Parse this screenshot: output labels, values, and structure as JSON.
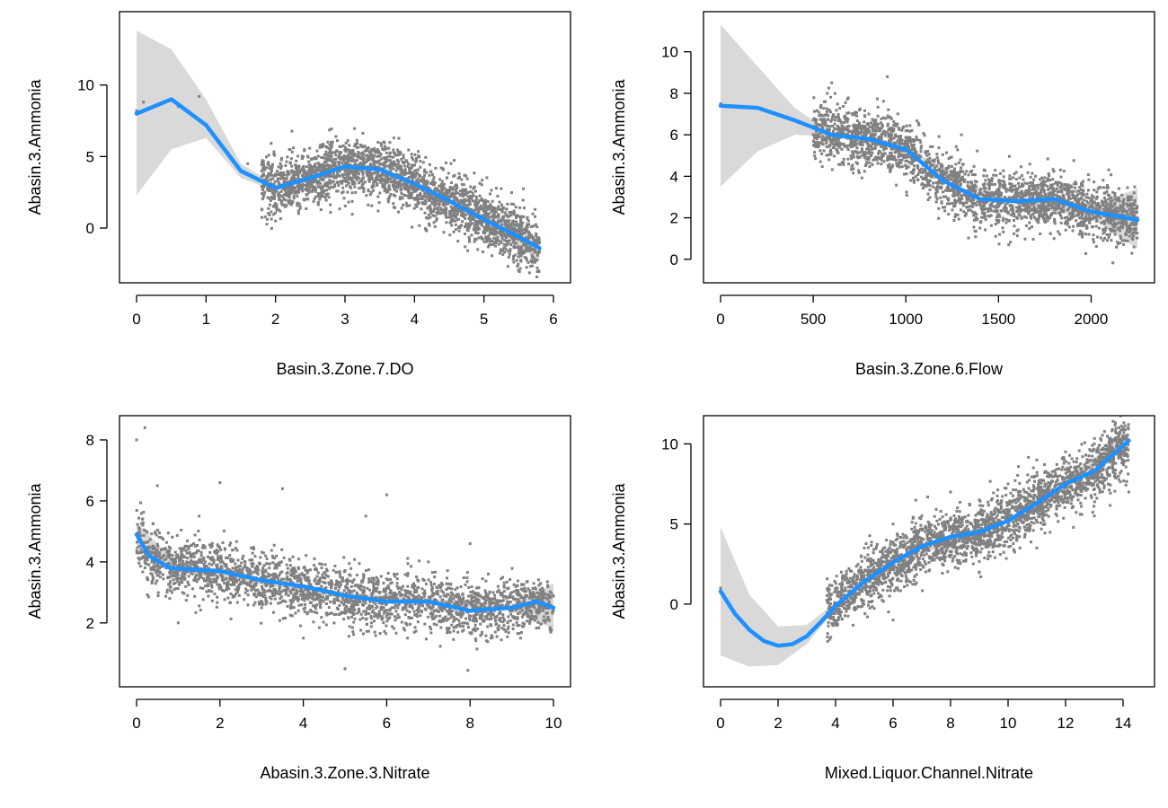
{
  "colors": {
    "points": "#808080",
    "smooth": "#1e90ff",
    "ribbon": "#d9d9d9",
    "axis": "#000000"
  },
  "chart_data": [
    {
      "type": "scatter",
      "xlabel": "Basin.3.Zone.7.DO",
      "ylabel": "Abasin.3.Ammonia",
      "xlim": [
        0,
        6
      ],
      "ylim": [
        -3.2,
        14.5
      ],
      "x_ticks": [
        "0",
        "1",
        "2",
        "3",
        "4",
        "5",
        "6"
      ],
      "y_ticks": [
        "0",
        "5",
        "10"
      ],
      "grid": false,
      "legend": "none",
      "points": {
        "summary": [
          {
            "x": 0.0,
            "y": 8.2
          },
          {
            "x": 0.1,
            "y": 8.8
          },
          {
            "x": 0.6,
            "y": 8.5
          },
          {
            "x": 0.9,
            "y": 9.2
          },
          {
            "x": 1.6,
            "y": 4.5
          },
          {
            "x": 1.9,
            "y": 2.8
          },
          {
            "x": 2.0,
            "y": 0.5
          },
          {
            "x": 2.2,
            "y": 5.5
          },
          {
            "x": 2.5,
            "y": 4.0
          },
          {
            "x": 2.8,
            "y": 6.0
          },
          {
            "x": 3.2,
            "y": 4.2
          },
          {
            "x": 3.6,
            "y": 3.5
          },
          {
            "x": 4.0,
            "y": 3.0
          },
          {
            "x": 4.4,
            "y": 2.0
          },
          {
            "x": 4.8,
            "y": 0.8
          },
          {
            "x": 5.2,
            "y": 0.0
          },
          {
            "x": 5.6,
            "y": -1.0
          },
          {
            "x": 5.8,
            "y": -1.4
          }
        ],
        "band_note_x": [
          1.8,
          5.8
        ]
      },
      "smooth": [
        {
          "x": 0.0,
          "y": 8.0
        },
        {
          "x": 0.5,
          "y": 9.0
        },
        {
          "x": 1.0,
          "y": 7.2
        },
        {
          "x": 1.5,
          "y": 4.0
        },
        {
          "x": 2.0,
          "y": 2.8
        },
        {
          "x": 2.5,
          "y": 3.5
        },
        {
          "x": 3.0,
          "y": 4.3
        },
        {
          "x": 3.5,
          "y": 4.1
        },
        {
          "x": 4.0,
          "y": 3.1
        },
        {
          "x": 4.5,
          "y": 1.9
        },
        {
          "x": 5.0,
          "y": 0.6
        },
        {
          "x": 5.5,
          "y": -0.6
        },
        {
          "x": 5.8,
          "y": -1.4
        }
      ],
      "ribbon": [
        {
          "x": 0.0,
          "lo": 2.3,
          "hi": 13.8
        },
        {
          "x": 0.5,
          "lo": 5.5,
          "hi": 12.5
        },
        {
          "x": 1.0,
          "lo": 6.3,
          "hi": 9.0
        },
        {
          "x": 1.5,
          "lo": 3.5,
          "hi": 4.5
        },
        {
          "x": 2.0,
          "lo": 2.6,
          "hi": 3.0
        },
        {
          "x": 3.0,
          "lo": 4.2,
          "hi": 4.4
        },
        {
          "x": 4.0,
          "lo": 3.0,
          "hi": 3.2
        },
        {
          "x": 5.0,
          "lo": 0.4,
          "hi": 0.8
        },
        {
          "x": 5.8,
          "lo": -2.3,
          "hi": -0.6
        }
      ]
    },
    {
      "type": "scatter",
      "xlabel": "Basin.3.Zone.6.Flow",
      "ylabel": "Abasin.3.Ammonia",
      "xlim": [
        0,
        2250
      ],
      "ylim": [
        -0.7,
        11.5
      ],
      "x_ticks": [
        "0",
        "500",
        "1000",
        "1500",
        "2000"
      ],
      "y_ticks": [
        "0",
        "2",
        "4",
        "6",
        "8",
        "10"
      ],
      "grid": false,
      "legend": "none",
      "points": {
        "summary": [
          {
            "x": 0,
            "y": 7.5
          },
          {
            "x": 500,
            "y": 6.0
          },
          {
            "x": 600,
            "y": 8.5
          },
          {
            "x": 700,
            "y": 5.5
          },
          {
            "x": 800,
            "y": 7.0
          },
          {
            "x": 900,
            "y": 8.8
          },
          {
            "x": 1000,
            "y": 4.5
          },
          {
            "x": 1100,
            "y": 3.5
          },
          {
            "x": 1200,
            "y": 2.5
          },
          {
            "x": 1300,
            "y": 6.0
          },
          {
            "x": 1400,
            "y": 1.5
          },
          {
            "x": 1500,
            "y": 3.0
          },
          {
            "x": 1600,
            "y": 2.0
          },
          {
            "x": 1700,
            "y": 4.0
          },
          {
            "x": 1800,
            "y": 1.0
          },
          {
            "x": 1900,
            "y": 2.5
          },
          {
            "x": 2100,
            "y": 1.8
          },
          {
            "x": 2250,
            "y": 2.0
          }
        ],
        "band_note_x": [
          500,
          2250
        ]
      },
      "smooth": [
        {
          "x": 0,
          "y": 7.4
        },
        {
          "x": 200,
          "y": 7.3
        },
        {
          "x": 400,
          "y": 6.7
        },
        {
          "x": 600,
          "y": 6.0
        },
        {
          "x": 800,
          "y": 5.8
        },
        {
          "x": 1000,
          "y": 5.3
        },
        {
          "x": 1200,
          "y": 3.8
        },
        {
          "x": 1400,
          "y": 2.9
        },
        {
          "x": 1600,
          "y": 2.8
        },
        {
          "x": 1800,
          "y": 2.9
        },
        {
          "x": 2000,
          "y": 2.3
        },
        {
          "x": 2250,
          "y": 1.9
        }
      ],
      "ribbon": [
        {
          "x": 0,
          "lo": 3.5,
          "hi": 11.3
        },
        {
          "x": 200,
          "lo": 5.2,
          "hi": 9.3
        },
        {
          "x": 400,
          "lo": 6.0,
          "hi": 7.3
        },
        {
          "x": 600,
          "lo": 5.9,
          "hi": 6.1
        },
        {
          "x": 1000,
          "lo": 5.2,
          "hi": 5.4
        },
        {
          "x": 1500,
          "lo": 2.8,
          "hi": 3.0
        },
        {
          "x": 2000,
          "lo": 2.0,
          "hi": 2.6
        },
        {
          "x": 2250,
          "lo": 0.5,
          "hi": 3.4
        }
      ]
    },
    {
      "type": "scatter",
      "xlabel": "Abasin.3.Zone.3.Nitrate",
      "ylabel": "Abasin.3.Ammonia",
      "xlim": [
        0,
        10
      ],
      "ylim": [
        0.2,
        8.5
      ],
      "x_ticks": [
        "0",
        "2",
        "4",
        "6",
        "8",
        "10"
      ],
      "y_ticks": [
        "2",
        "4",
        "6",
        "8"
      ],
      "grid": false,
      "legend": "none",
      "points": {
        "summary": [
          {
            "x": 0.0,
            "y": 8.0
          },
          {
            "x": 0.2,
            "y": 8.4
          },
          {
            "x": 0.5,
            "y": 6.5
          },
          {
            "x": 1.0,
            "y": 2.0
          },
          {
            "x": 1.5,
            "y": 5.5
          },
          {
            "x": 2.0,
            "y": 6.6
          },
          {
            "x": 3.0,
            "y": 2.5
          },
          {
            "x": 3.5,
            "y": 6.4
          },
          {
            "x": 4.0,
            "y": 1.5
          },
          {
            "x": 5.0,
            "y": 0.5
          },
          {
            "x": 5.5,
            "y": 5.5
          },
          {
            "x": 6.0,
            "y": 6.2
          },
          {
            "x": 6.5,
            "y": 1.5
          },
          {
            "x": 7.0,
            "y": 4.0
          },
          {
            "x": 8.0,
            "y": 4.6
          },
          {
            "x": 8.5,
            "y": 1.5
          },
          {
            "x": 9.0,
            "y": 3.0
          },
          {
            "x": 10.0,
            "y": 2.5
          }
        ],
        "band_note_x": [
          0,
          10
        ]
      },
      "smooth": [
        {
          "x": 0.0,
          "y": 4.9
        },
        {
          "x": 0.3,
          "y": 4.2
        },
        {
          "x": 0.8,
          "y": 3.8
        },
        {
          "x": 2.0,
          "y": 3.7
        },
        {
          "x": 3.0,
          "y": 3.4
        },
        {
          "x": 4.0,
          "y": 3.2
        },
        {
          "x": 5.0,
          "y": 2.9
        },
        {
          "x": 6.0,
          "y": 2.7
        },
        {
          "x": 7.0,
          "y": 2.7
        },
        {
          "x": 8.0,
          "y": 2.4
        },
        {
          "x": 9.0,
          "y": 2.5
        },
        {
          "x": 9.6,
          "y": 2.7
        },
        {
          "x": 10.0,
          "y": 2.5
        }
      ],
      "ribbon": [
        {
          "x": 0.0,
          "lo": 4.5,
          "hi": 5.3
        },
        {
          "x": 1.0,
          "lo": 3.7,
          "hi": 3.9
        },
        {
          "x": 5.0,
          "lo": 2.8,
          "hi": 3.0
        },
        {
          "x": 9.0,
          "lo": 2.4,
          "hi": 2.6
        },
        {
          "x": 10.0,
          "lo": 1.8,
          "hi": 3.3
        }
      ]
    },
    {
      "type": "scatter",
      "xlabel": "Mixed.Liquor.Channel.Nitrate",
      "ylabel": "Abasin.3.Ammonia",
      "xlim": [
        0,
        14.5
      ],
      "ylim": [
        -4.6,
        11.2
      ],
      "x_ticks": [
        "0",
        "2",
        "4",
        "6",
        "8",
        "10",
        "12",
        "14"
      ],
      "y_ticks": [
        "0",
        "5",
        "10"
      ],
      "grid": false,
      "legend": "none",
      "points": {
        "summary": [
          {
            "x": 0.0,
            "y": 1.0
          },
          {
            "x": 3.8,
            "y": -2.2
          },
          {
            "x": 4.2,
            "y": 2.0
          },
          {
            "x": 5.0,
            "y": 3.5
          },
          {
            "x": 6.0,
            "y": 5.0
          },
          {
            "x": 7.0,
            "y": 5.5
          },
          {
            "x": 8.0,
            "y": 7.0
          },
          {
            "x": 9.0,
            "y": 6.5
          },
          {
            "x": 10.0,
            "y": 7.5
          },
          {
            "x": 11.0,
            "y": 9.0
          },
          {
            "x": 12.0,
            "y": 9.5
          },
          {
            "x": 13.0,
            "y": 10.0
          },
          {
            "x": 14.0,
            "y": 11.0
          },
          {
            "x": 6.0,
            "y": -1.0
          },
          {
            "x": 9.0,
            "y": 2.0
          },
          {
            "x": 11.0,
            "y": 3.5
          },
          {
            "x": 13.0,
            "y": 5.5
          },
          {
            "x": 14.2,
            "y": 7.0
          }
        ],
        "band_note_x": [
          3.7,
          14.2
        ]
      },
      "smooth": [
        {
          "x": 0.0,
          "y": 0.8
        },
        {
          "x": 0.5,
          "y": -0.6
        },
        {
          "x": 1.0,
          "y": -1.6
        },
        {
          "x": 1.5,
          "y": -2.3
        },
        {
          "x": 2.0,
          "y": -2.6
        },
        {
          "x": 2.5,
          "y": -2.5
        },
        {
          "x": 3.0,
          "y": -2.0
        },
        {
          "x": 3.5,
          "y": -1.1
        },
        {
          "x": 4.0,
          "y": -0.1
        },
        {
          "x": 5.0,
          "y": 1.4
        },
        {
          "x": 6.0,
          "y": 2.6
        },
        {
          "x": 7.0,
          "y": 3.6
        },
        {
          "x": 8.0,
          "y": 4.2
        },
        {
          "x": 9.0,
          "y": 4.5
        },
        {
          "x": 10.0,
          "y": 5.2
        },
        {
          "x": 11.0,
          "y": 6.3
        },
        {
          "x": 12.0,
          "y": 7.5
        },
        {
          "x": 13.0,
          "y": 8.3
        },
        {
          "x": 14.2,
          "y": 10.2
        }
      ],
      "ribbon": [
        {
          "x": 0.0,
          "lo": -3.2,
          "hi": 4.8
        },
        {
          "x": 1.0,
          "lo": -3.9,
          "hi": 0.6
        },
        {
          "x": 2.0,
          "lo": -3.8,
          "hi": -1.4
        },
        {
          "x": 3.0,
          "lo": -2.5,
          "hi": -1.3
        },
        {
          "x": 4.0,
          "lo": -0.3,
          "hi": 0.1
        },
        {
          "x": 6.0,
          "lo": 2.5,
          "hi": 2.7
        },
        {
          "x": 10.0,
          "lo": 5.1,
          "hi": 5.3
        },
        {
          "x": 14.2,
          "lo": 9.7,
          "hi": 10.7
        }
      ]
    }
  ]
}
